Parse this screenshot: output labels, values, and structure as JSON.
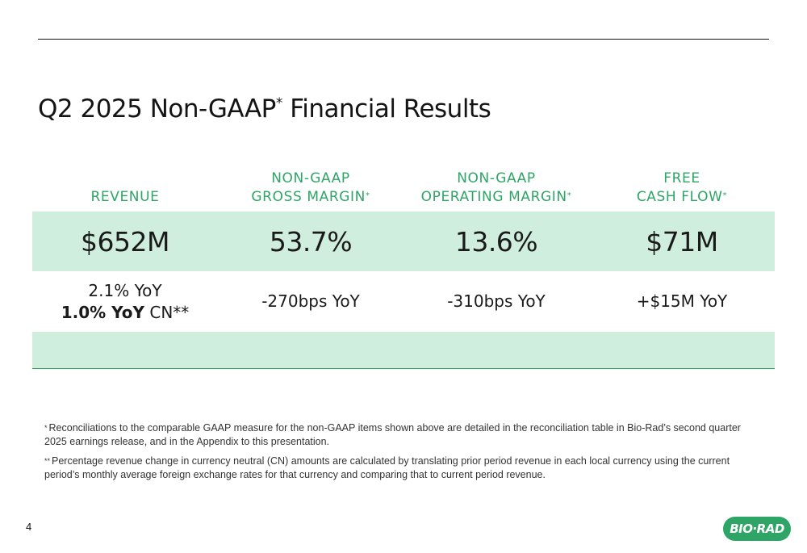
{
  "title": {
    "text": "Q2 2025 Non-GAAP",
    "mark": "*",
    "suffix": " Financial Results"
  },
  "metrics": [
    {
      "header_line1": "",
      "header_line2": "REVENUE",
      "header_mark": "",
      "value": "$652M",
      "change_line1": "2.1% YoY",
      "change_line2_bold": "1.0% YoY",
      "change_line2_rest": " CN**"
    },
    {
      "header_line1": "NON-GAAP",
      "header_line2": "GROSS MARGIN",
      "header_mark": "*",
      "value": "53.7%",
      "change": "-270bps YoY"
    },
    {
      "header_line1": "NON-GAAP",
      "header_line2": "OPERATING MARGIN",
      "header_mark": "*",
      "value": "13.6%",
      "change": "-310bps YoY"
    },
    {
      "header_line1": "FREE",
      "header_line2": "CASH FLOW",
      "header_mark": "*",
      "value": "$71M",
      "change": "+$15M YoY"
    }
  ],
  "footnotes": [
    {
      "mark": "*",
      "text": "Reconciliations to the comparable GAAP measure for the non-GAAP items shown above are detailed in the reconciliation table in Bio-Rad’s second quarter 2025 earnings release, and in the Appendix to this presentation."
    },
    {
      "mark": "**",
      "text": "Percentage revenue change in currency neutral (CN) amounts are calculated by translating prior period revenue in each local currency using the current period’s monthly average foreign exchange rates for that currency and comparing that to current period revenue."
    }
  ],
  "page_number": "4",
  "logo_text": "BIO·RAD",
  "colors": {
    "accent_green": "#2ea566",
    "band_green": "#cfeedd",
    "text": "#1a1a1a"
  }
}
